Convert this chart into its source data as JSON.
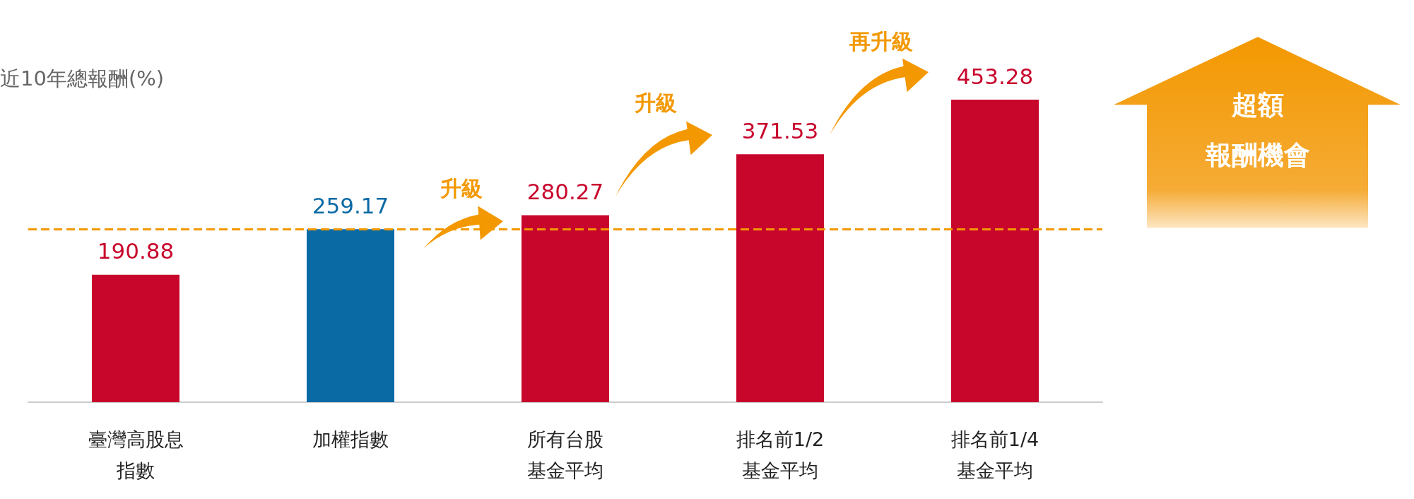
{
  "chart_data": {
    "type": "bar",
    "categories": [
      "臺灣高股息指數",
      "加權指數",
      "所有台股基金平均",
      "排名前1/2基金平均",
      "排名前1/4基金平均"
    ],
    "values": [
      190.88,
      259.17,
      280.27,
      371.53,
      453.28
    ],
    "colors": [
      "#c8062c",
      "#0a6aa4",
      "#c8062c",
      "#c8062c",
      "#c8062c"
    ],
    "data_labels": true,
    "grid": false,
    "ref_lines": [
      {
        "axis": "y",
        "value": 259.17,
        "color": "#f39800",
        "line_style": "dashed"
      }
    ],
    "annotations": [
      "近10年總報酬(%)",
      "升級",
      "升級",
      "再升級",
      "超額報酬機會"
    ]
  }
}
